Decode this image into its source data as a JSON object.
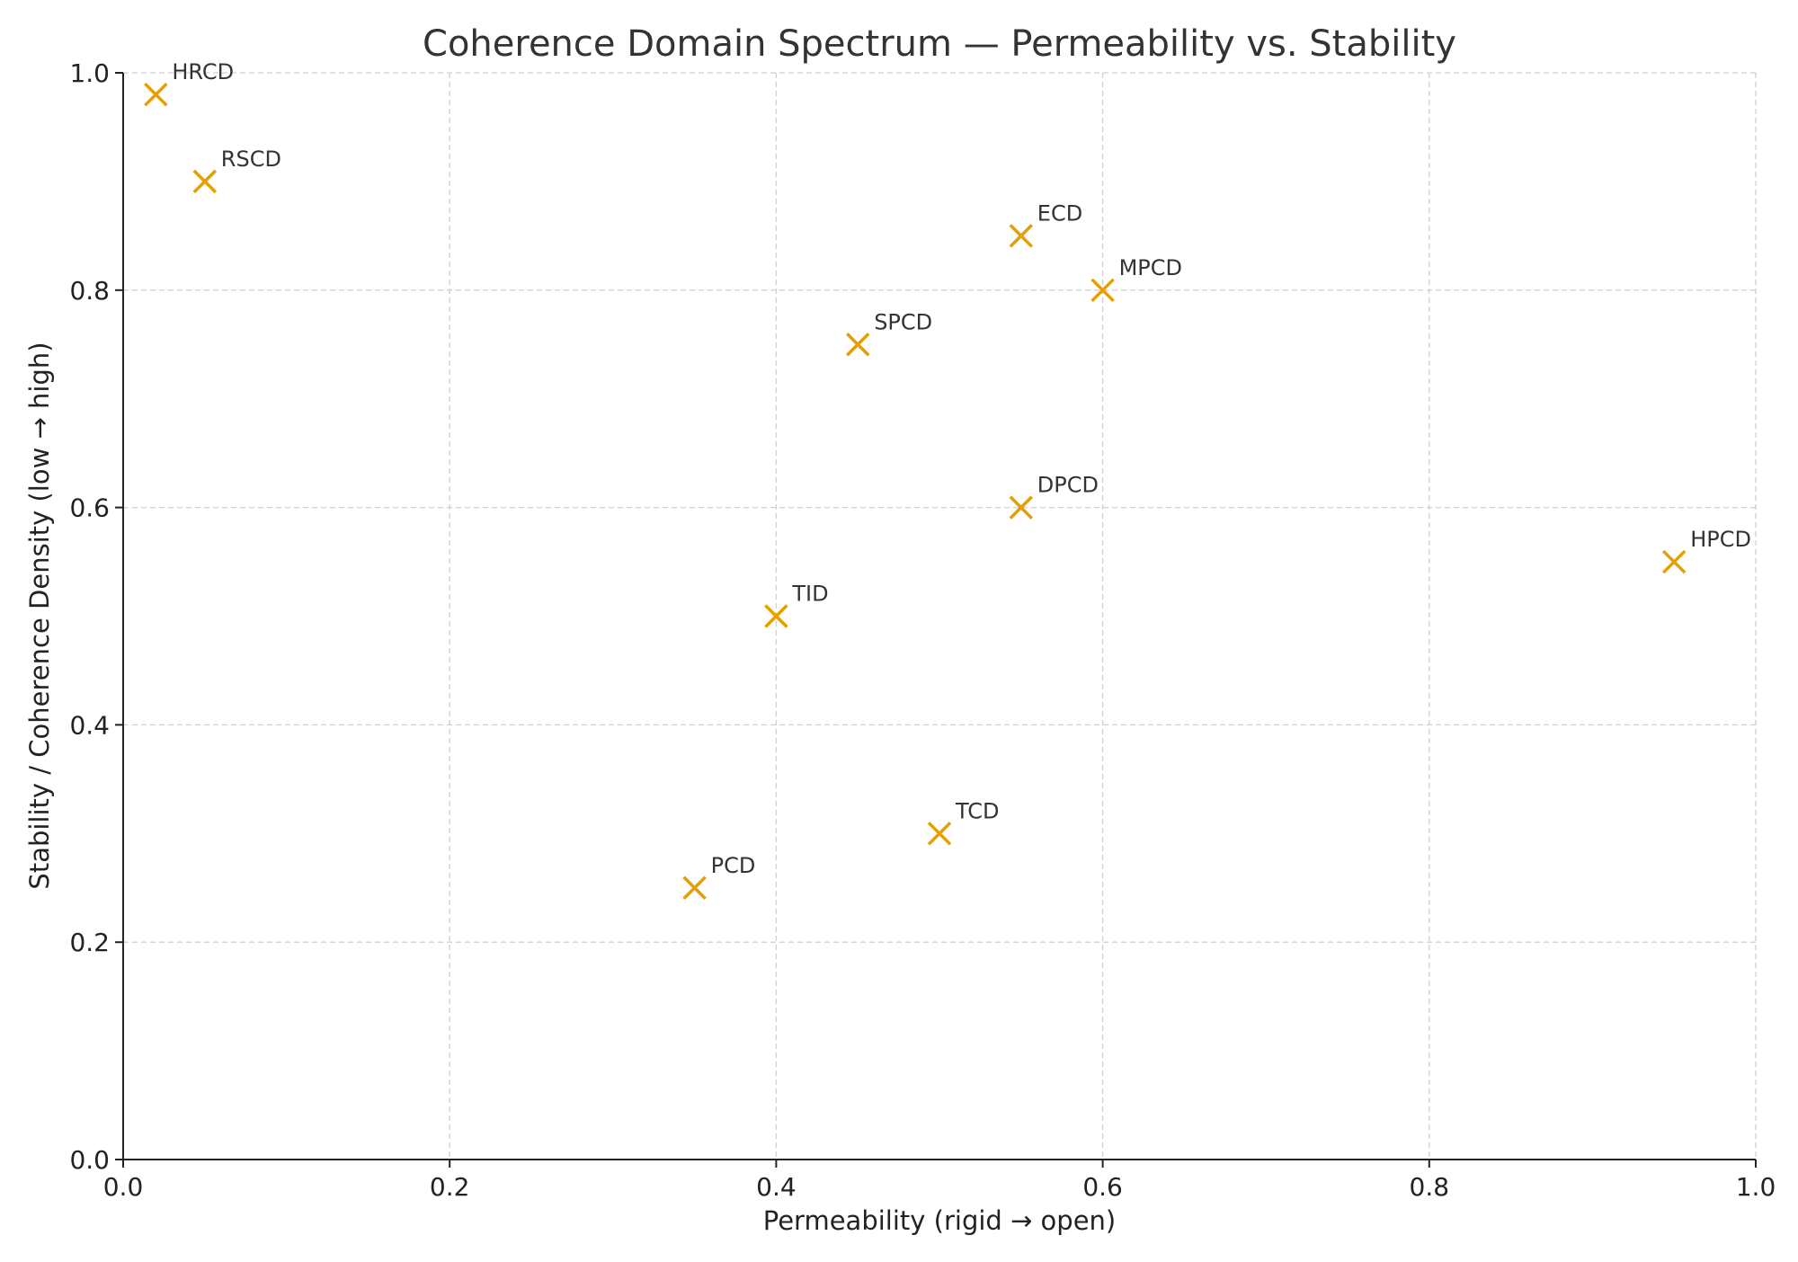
{
  "chart_data": {
    "type": "scatter",
    "title": "Coherence Domain Spectrum — Permeability vs. Stability",
    "xlabel": "Permeability (rigid → open)",
    "ylabel": "Stability / Coherence Density (low → high)",
    "xlim": [
      0,
      1
    ],
    "ylim": [
      0,
      1
    ],
    "xticks": [
      "0.0",
      "0.2",
      "0.4",
      "0.6",
      "0.8",
      "1.0"
    ],
    "yticks": [
      "0.0",
      "0.2",
      "0.4",
      "0.6",
      "0.8",
      "1.0"
    ],
    "grid": true,
    "marker": "x",
    "color": "#E69F00",
    "points": [
      {
        "label": "HRCD",
        "x": 0.02,
        "y": 0.98
      },
      {
        "label": "RSCD",
        "x": 0.05,
        "y": 0.9
      },
      {
        "label": "ECD",
        "x": 0.55,
        "y": 0.85
      },
      {
        "label": "MPCD",
        "x": 0.6,
        "y": 0.8
      },
      {
        "label": "SPCD",
        "x": 0.45,
        "y": 0.75
      },
      {
        "label": "DPCD",
        "x": 0.55,
        "y": 0.6
      },
      {
        "label": "HPCD",
        "x": 0.95,
        "y": 0.55
      },
      {
        "label": "TID",
        "x": 0.4,
        "y": 0.5
      },
      {
        "label": "TCD",
        "x": 0.5,
        "y": 0.3
      },
      {
        "label": "PCD",
        "x": 0.35,
        "y": 0.25
      }
    ]
  }
}
